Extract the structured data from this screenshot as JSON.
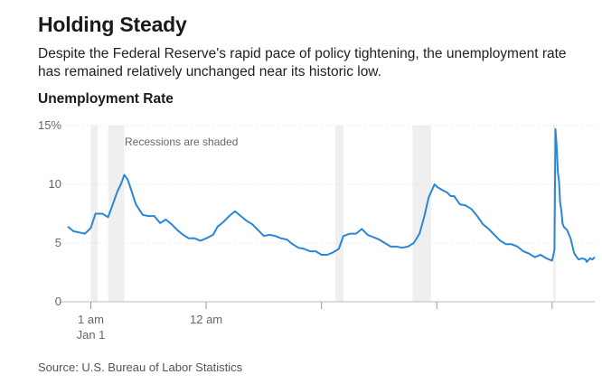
{
  "title": "Holding Steady",
  "subtitle": "Despite the Federal Reserve's rapid pace of policy tightening, the unemployment rate has remained relatively unchanged near its historic low.",
  "chart_title": "Unemployment Rate",
  "source": "Source: U.S. Bureau of Labor Statistics",
  "chart_data": {
    "type": "line",
    "title": "Unemployment Rate",
    "ylabel": "",
    "xlabel": "",
    "ylim": [
      0,
      15
    ],
    "yticks": [
      {
        "value": 0,
        "label": "0"
      },
      {
        "value": 5,
        "label": "5"
      },
      {
        "value": 10,
        "label": "10"
      },
      {
        "value": 15,
        "label": "15%"
      }
    ],
    "xlim": [
      1978.0,
      2023.7
    ],
    "xticks": [
      {
        "value": 1980,
        "label": "1 am"
      },
      {
        "value": 1990,
        "label": "12 am"
      },
      {
        "value": 2000,
        "label": ""
      },
      {
        "value": 2010,
        "label": ""
      },
      {
        "value": 2020,
        "label": ""
      }
    ],
    "xtick_sublabel": "Jan 1",
    "annotation": "Recessions are shaded",
    "recessions": [
      [
        1980.0,
        1980.6
      ],
      [
        1981.5,
        1982.9
      ],
      [
        2001.2,
        2001.9
      ],
      [
        2007.9,
        2009.5
      ],
      [
        2020.1,
        2020.3
      ]
    ],
    "grid": true,
    "color": "#2a86d8",
    "shade_color": "#efefef",
    "series": [
      {
        "values": [
          [
            1978.0,
            6.4
          ],
          [
            1978.5,
            6.0
          ],
          [
            1979.0,
            5.9
          ],
          [
            1979.5,
            5.8
          ],
          [
            1980.0,
            6.3
          ],
          [
            1980.4,
            7.5
          ],
          [
            1980.8,
            7.5
          ],
          [
            1981.0,
            7.5
          ],
          [
            1981.5,
            7.2
          ],
          [
            1981.9,
            8.3
          ],
          [
            1982.3,
            9.4
          ],
          [
            1982.6,
            10.0
          ],
          [
            1982.9,
            10.8
          ],
          [
            1983.2,
            10.4
          ],
          [
            1983.5,
            9.5
          ],
          [
            1983.9,
            8.3
          ],
          [
            1984.5,
            7.4
          ],
          [
            1985.0,
            7.3
          ],
          [
            1985.5,
            7.3
          ],
          [
            1986.0,
            6.7
          ],
          [
            1986.5,
            7.0
          ],
          [
            1987.0,
            6.6
          ],
          [
            1987.5,
            6.1
          ],
          [
            1988.0,
            5.7
          ],
          [
            1988.5,
            5.4
          ],
          [
            1989.0,
            5.4
          ],
          [
            1989.5,
            5.2
          ],
          [
            1990.0,
            5.4
          ],
          [
            1990.6,
            5.7
          ],
          [
            1991.0,
            6.4
          ],
          [
            1991.5,
            6.8
          ],
          [
            1992.0,
            7.3
          ],
          [
            1992.5,
            7.7
          ],
          [
            1993.0,
            7.3
          ],
          [
            1993.5,
            6.9
          ],
          [
            1994.0,
            6.6
          ],
          [
            1994.5,
            6.1
          ],
          [
            1995.0,
            5.6
          ],
          [
            1995.5,
            5.7
          ],
          [
            1996.0,
            5.6
          ],
          [
            1996.5,
            5.4
          ],
          [
            1997.0,
            5.3
          ],
          [
            1997.5,
            4.9
          ],
          [
            1998.0,
            4.6
          ],
          [
            1998.5,
            4.5
          ],
          [
            1999.0,
            4.3
          ],
          [
            1999.5,
            4.3
          ],
          [
            2000.0,
            4.0
          ],
          [
            2000.5,
            4.0
          ],
          [
            2001.0,
            4.2
          ],
          [
            2001.5,
            4.5
          ],
          [
            2001.9,
            5.6
          ],
          [
            2002.5,
            5.8
          ],
          [
            2003.0,
            5.8
          ],
          [
            2003.5,
            6.2
          ],
          [
            2004.0,
            5.7
          ],
          [
            2004.5,
            5.5
          ],
          [
            2005.0,
            5.3
          ],
          [
            2005.5,
            5.0
          ],
          [
            2006.0,
            4.7
          ],
          [
            2006.5,
            4.7
          ],
          [
            2007.0,
            4.6
          ],
          [
            2007.5,
            4.7
          ],
          [
            2008.0,
            5.0
          ],
          [
            2008.5,
            5.8
          ],
          [
            2008.9,
            7.2
          ],
          [
            2009.3,
            8.9
          ],
          [
            2009.8,
            10.0
          ],
          [
            2010.0,
            9.8
          ],
          [
            2010.5,
            9.5
          ],
          [
            2010.9,
            9.3
          ],
          [
            2011.2,
            9.0
          ],
          [
            2011.5,
            9.0
          ],
          [
            2012.0,
            8.3
          ],
          [
            2012.5,
            8.2
          ],
          [
            2013.0,
            7.9
          ],
          [
            2013.5,
            7.3
          ],
          [
            2014.0,
            6.6
          ],
          [
            2014.5,
            6.2
          ],
          [
            2015.0,
            5.7
          ],
          [
            2015.5,
            5.2
          ],
          [
            2016.0,
            4.9
          ],
          [
            2016.5,
            4.9
          ],
          [
            2017.0,
            4.7
          ],
          [
            2017.5,
            4.3
          ],
          [
            2018.0,
            4.1
          ],
          [
            2018.5,
            3.8
          ],
          [
            2019.0,
            4.0
          ],
          [
            2019.5,
            3.7
          ],
          [
            2020.0,
            3.5
          ],
          [
            2020.2,
            4.4
          ],
          [
            2020.29,
            14.7
          ],
          [
            2020.4,
            13.2
          ],
          [
            2020.5,
            11.0
          ],
          [
            2020.6,
            10.2
          ],
          [
            2020.7,
            8.4
          ],
          [
            2020.8,
            7.8
          ],
          [
            2020.9,
            6.7
          ],
          [
            2021.0,
            6.4
          ],
          [
            2021.3,
            6.1
          ],
          [
            2021.6,
            5.4
          ],
          [
            2021.9,
            4.2
          ],
          [
            2022.0,
            4.0
          ],
          [
            2022.3,
            3.6
          ],
          [
            2022.6,
            3.7
          ],
          [
            2022.9,
            3.6
          ],
          [
            2023.0,
            3.4
          ],
          [
            2023.3,
            3.7
          ],
          [
            2023.5,
            3.6
          ],
          [
            2023.7,
            3.8
          ]
        ]
      }
    ]
  }
}
